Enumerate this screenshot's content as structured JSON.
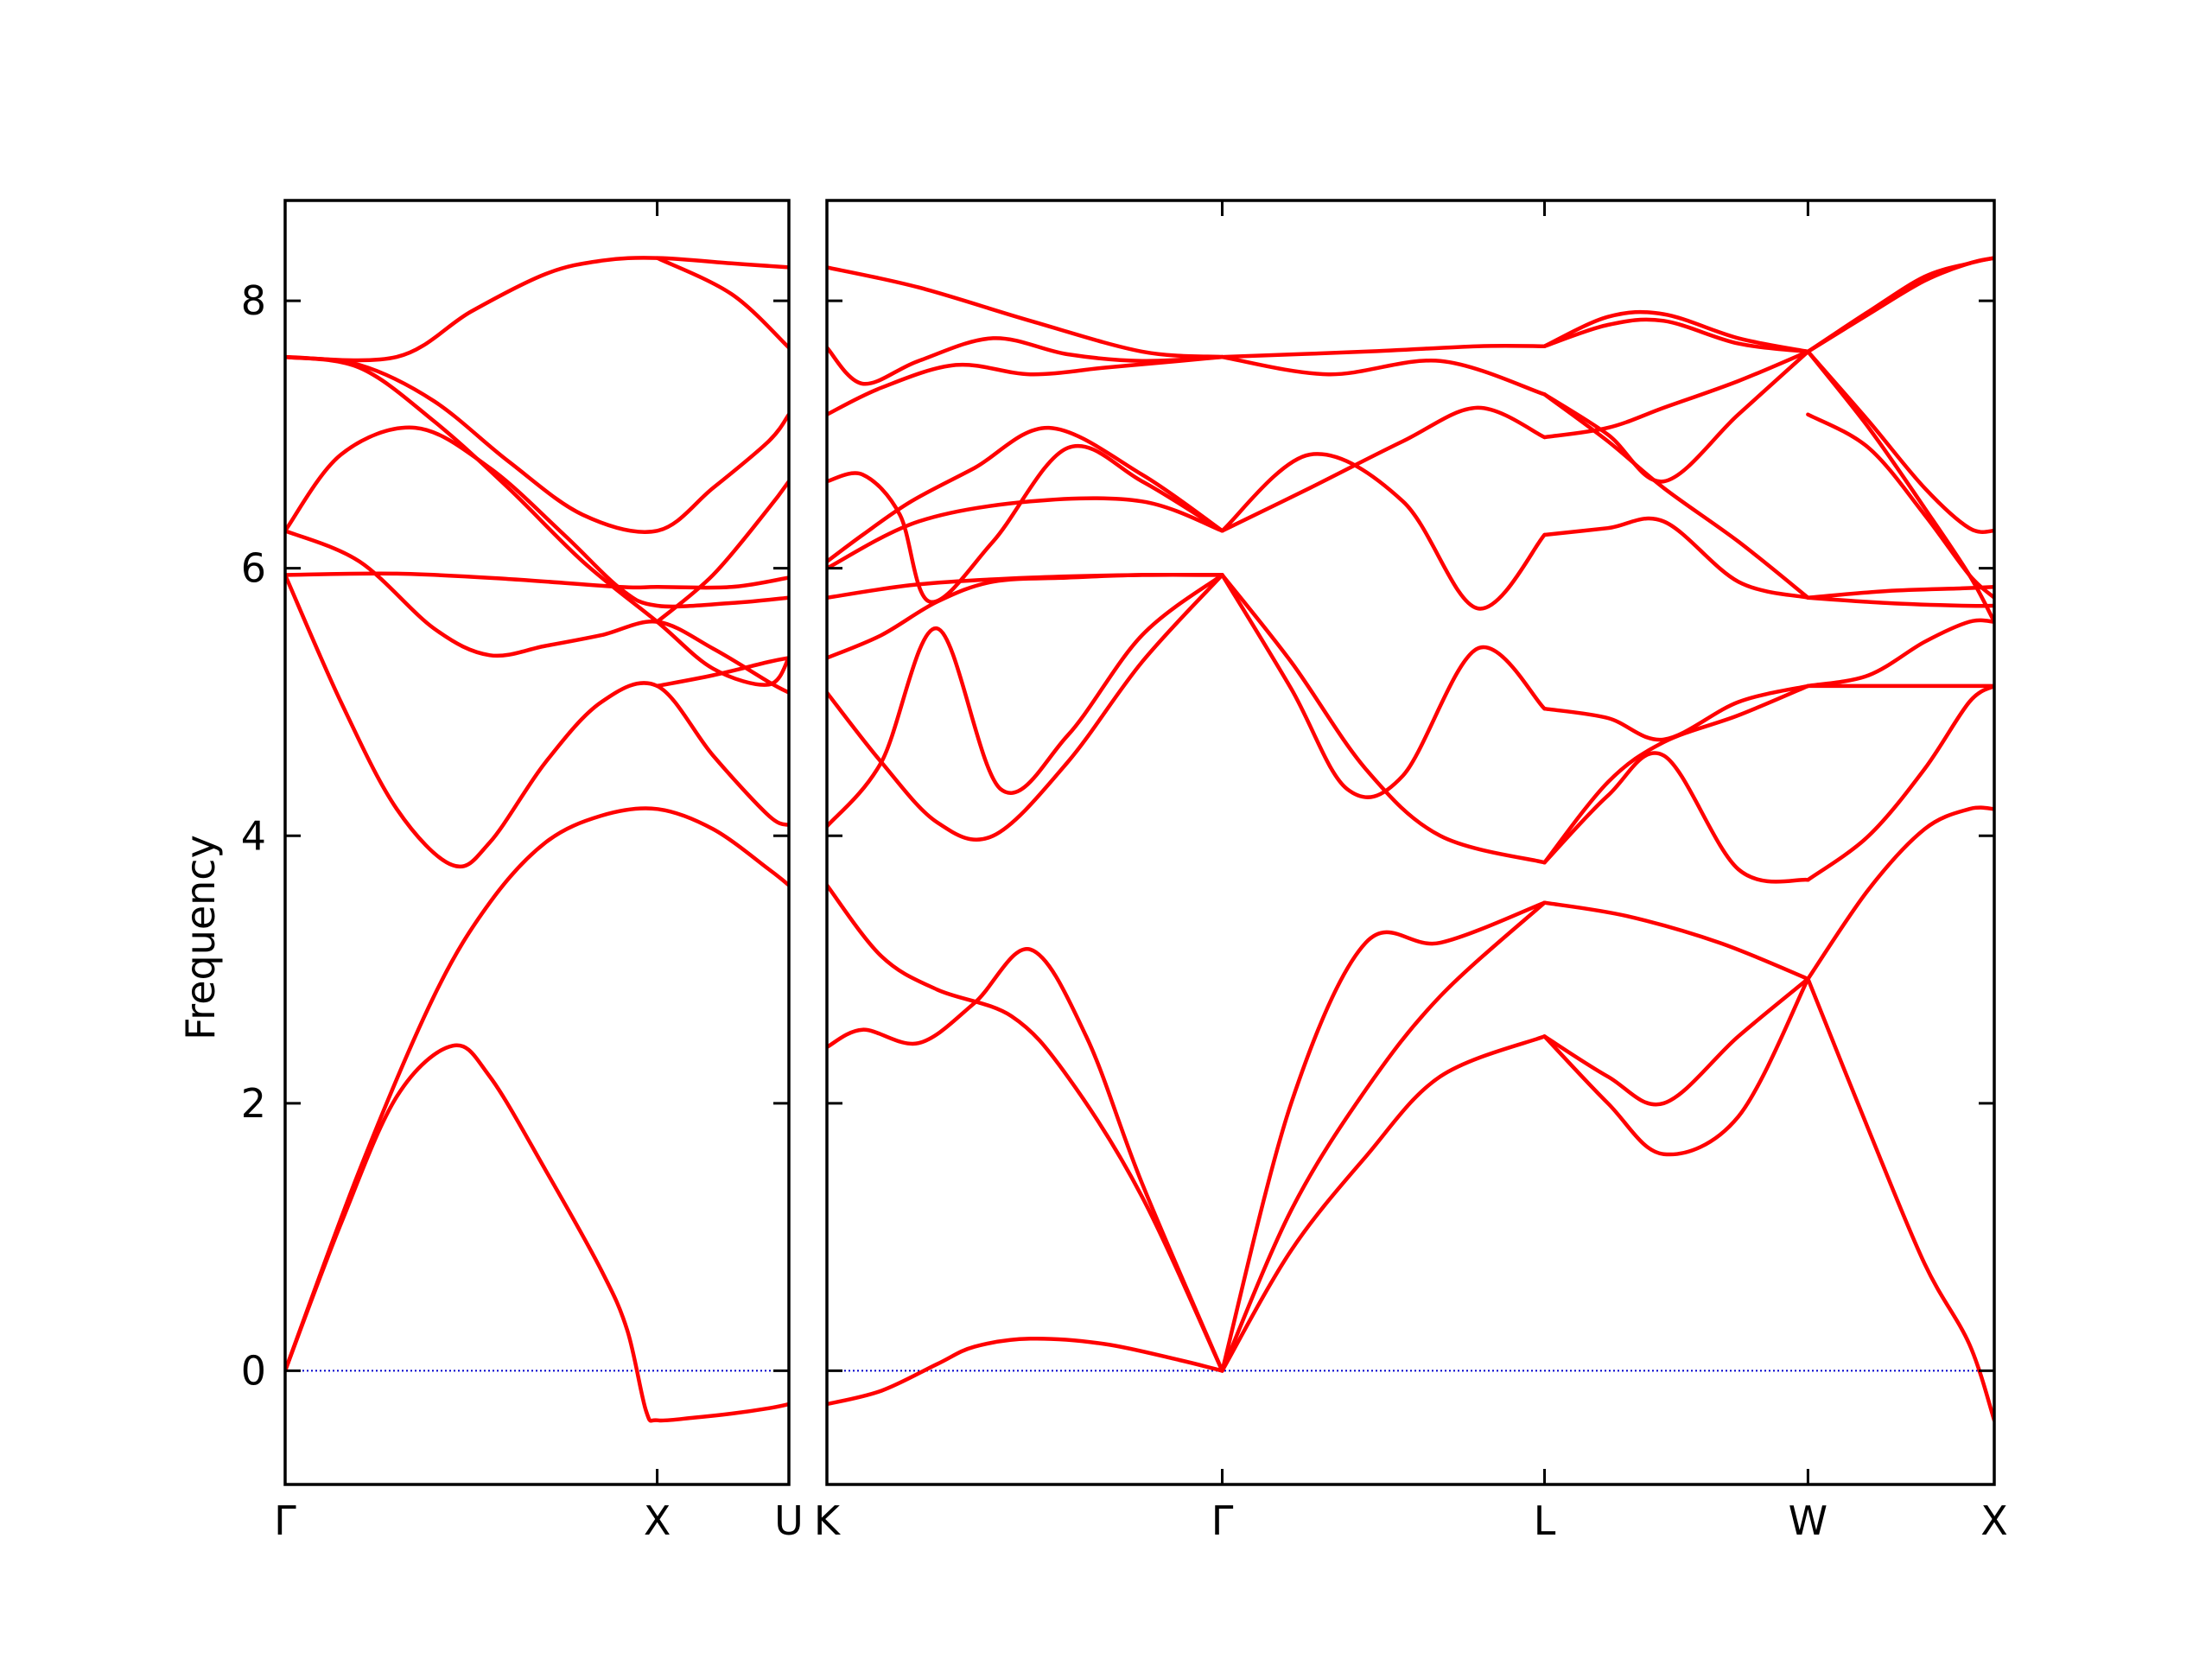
{
  "chart_data": {
    "type": "line",
    "ylabel": "Frequency",
    "ylim": [
      -0.85,
      8.75
    ],
    "yticks": [
      0,
      2,
      4,
      6,
      8
    ],
    "yticks_labels": [
      "0",
      "2",
      "4",
      "6",
      "8"
    ],
    "x_segments": [
      [
        0,
        1.0
      ],
      [
        1.0,
        1.354
      ],
      [
        1.354,
        2.415
      ],
      [
        2.415,
        3.28
      ],
      [
        3.28,
        3.987
      ],
      [
        3.987,
        4.487
      ]
    ],
    "x_breaks": [
      1.354
    ],
    "xticks": [
      0,
      1.0,
      1.354,
      2.415,
      3.28,
      3.987,
      4.487
    ],
    "xtick_labels": [
      "Γ",
      "X",
      "U",
      "K",
      "Γ",
      "L",
      "W",
      "X"
    ],
    "colors": {
      "band": "#ff0000",
      "zero_line": "#0000cc",
      "axes": "#000000"
    },
    "zero_line": "dotted",
    "series": [
      {
        "x": [
          0,
          0.15,
          0.3,
          0.45,
          0.55,
          0.7,
          0.85,
          0.92,
          0.97,
          1.0,
          1.1,
          1.2,
          1.3,
          1.354
        ],
        "y": [
          0,
          1.1,
          2.05,
          2.43,
          2.2,
          1.5,
          0.75,
          0.3,
          -0.3,
          -0.37,
          -0.35,
          -0.32,
          -0.28,
          -0.25
        ]
      },
      {
        "x": [
          0,
          0.2,
          0.4,
          0.55,
          0.7,
          0.85,
          1.0,
          1.15,
          1.3,
          1.354
        ],
        "y": [
          0,
          1.5,
          2.8,
          3.5,
          3.95,
          4.15,
          4.2,
          4.05,
          3.75,
          3.63
        ]
      },
      {
        "x": [
          0,
          0.15,
          0.3,
          0.45,
          0.55,
          0.7,
          0.85,
          1.0,
          1.15,
          1.3,
          1.354
        ],
        "y": [
          5.95,
          5.0,
          4.2,
          3.78,
          3.95,
          4.55,
          5.0,
          5.12,
          4.6,
          4.15,
          4.08
        ]
      },
      {
        "x": [
          0,
          0.2,
          0.4,
          0.55,
          0.7,
          0.85,
          1.0,
          1.15,
          1.3,
          1.354
        ],
        "y": [
          6.28,
          6.05,
          5.55,
          5.35,
          5.42,
          5.5,
          5.6,
          5.4,
          5.15,
          5.07
        ]
      },
      {
        "x": [
          0,
          0.3,
          0.6,
          0.9,
          1.0,
          1.2,
          1.354
        ],
        "y": [
          5.95,
          5.96,
          5.92,
          5.86,
          5.86,
          5.86,
          5.93
        ]
      },
      {
        "x": [
          0,
          0.15,
          0.35,
          0.55,
          0.75,
          0.9,
          1.0,
          1.2,
          1.354
        ],
        "y": [
          6.28,
          6.85,
          7.05,
          6.75,
          6.25,
          5.85,
          5.72,
          5.74,
          5.78
        ]
      },
      {
        "x": [
          0,
          0.2,
          0.4,
          0.6,
          0.8,
          1.0,
          1.15,
          1.3,
          1.354
        ],
        "y": [
          7.58,
          7.5,
          7.1,
          6.6,
          6.05,
          5.6,
          5.25,
          5.13,
          5.33
        ]
      },
      {
        "x": [
          0,
          0.2,
          0.4,
          0.6,
          0.8,
          1.0,
          1.15,
          1.3,
          1.354
        ],
        "y": [
          7.58,
          7.52,
          7.25,
          6.8,
          6.4,
          6.28,
          6.6,
          6.95,
          7.15
        ]
      },
      {
        "x": [
          0,
          0.3,
          0.5,
          0.7,
          0.85,
          1.0,
          1.2,
          1.354
        ],
        "y": [
          7.58,
          7.58,
          7.92,
          8.2,
          8.3,
          8.32,
          8.28,
          8.25
        ]
      },
      {
        "x": [
          1.0,
          1.2,
          1.354
        ],
        "y": [
          8.32,
          8.05,
          7.65
        ]
      },
      {
        "x": [
          1.0,
          1.15,
          1.3,
          1.354
        ],
        "y": [
          5.12,
          5.2,
          5.3,
          5.33
        ]
      },
      {
        "x": [
          1.0,
          1.15,
          1.3,
          1.354
        ],
        "y": [
          5.6,
          5.95,
          6.45,
          6.65
        ]
      },
      {
        "x": [
          1.354,
          1.5,
          1.65,
          1.75,
          1.9,
          2.1,
          2.3,
          2.415
        ],
        "y": [
          -0.25,
          -0.15,
          0.05,
          0.18,
          0.24,
          0.2,
          0.08,
          0
        ]
      },
      {
        "x": [
          1.354,
          1.45,
          1.6,
          1.75,
          1.9,
          2.05,
          2.2,
          2.415
        ],
        "y": [
          2.42,
          2.55,
          2.45,
          2.75,
          3.15,
          2.5,
          1.4,
          0
        ]
      },
      {
        "x": [
          1.354,
          1.5,
          1.65,
          1.85,
          2.0,
          2.2,
          2.415
        ],
        "y": [
          3.63,
          3.1,
          2.85,
          2.65,
          2.2,
          1.3,
          0
        ]
      },
      {
        "x": [
          1.354,
          1.5,
          1.65,
          1.82,
          2.0,
          2.2,
          2.415
        ],
        "y": [
          4.07,
          4.55,
          5.55,
          4.35,
          4.75,
          5.5,
          5.95
        ]
      },
      {
        "x": [
          1.354,
          1.5,
          1.65,
          1.8,
          2.0,
          2.2,
          2.415
        ],
        "y": [
          5.07,
          4.55,
          4.1,
          4.0,
          4.55,
          5.3,
          5.95
        ]
      },
      {
        "x": [
          1.354,
          1.5,
          1.65,
          1.8,
          2.0,
          2.2,
          2.415
        ],
        "y": [
          5.33,
          5.5,
          5.75,
          5.9,
          5.93,
          5.95,
          5.95
        ]
      },
      {
        "x": [
          1.354,
          1.6,
          1.9,
          2.2,
          2.415
        ],
        "y": [
          5.78,
          5.88,
          5.93,
          5.95,
          5.95
        ]
      },
      {
        "x": [
          1.354,
          1.45,
          1.58,
          1.75,
          1.95,
          2.2,
          2.415
        ],
        "y": [
          6.05,
          6.25,
          6.5,
          6.75,
          7.05,
          6.7,
          6.28
        ]
      },
      {
        "x": [
          1.354,
          1.45,
          1.55,
          1.63,
          1.8,
          2.0,
          2.2,
          2.415
        ],
        "y": [
          6.65,
          6.7,
          6.4,
          5.75,
          6.2,
          6.9,
          6.65,
          6.28
        ]
      },
      {
        "x": [
          1.354,
          1.5,
          1.7,
          1.9,
          2.1,
          2.3,
          2.415
        ],
        "y": [
          7.15,
          7.35,
          7.52,
          7.45,
          7.5,
          7.55,
          7.58
        ]
      },
      {
        "x": [
          1.354,
          1.45,
          1.6,
          1.8,
          2.0,
          2.2,
          2.415
        ],
        "y": [
          7.65,
          7.38,
          7.55,
          7.72,
          7.6,
          7.55,
          7.58
        ]
      },
      {
        "x": [
          1.354,
          1.6,
          1.9,
          2.2,
          2.415
        ],
        "y": [
          8.25,
          8.1,
          7.85,
          7.62,
          7.58
        ]
      },
      {
        "x": [
          1.354,
          1.6,
          1.9,
          2.2,
          2.415
        ],
        "y": [
          6.0,
          6.35,
          6.5,
          6.5,
          6.28
        ]
      },
      {
        "x": [
          2.415,
          2.6,
          2.8,
          3.0,
          3.28
        ],
        "y": [
          0,
          1.2,
          2.1,
          2.8,
          3.5
        ]
      },
      {
        "x": [
          2.415,
          2.6,
          2.8,
          3.0,
          3.28
        ],
        "y": [
          0,
          2.0,
          3.2,
          3.2,
          3.5
        ]
      },
      {
        "x": [
          2.415,
          2.6,
          2.8,
          3.0,
          3.28
        ],
        "y": [
          0,
          0.9,
          1.6,
          2.2,
          2.5
        ]
      },
      {
        "x": [
          2.415,
          2.6,
          2.75,
          2.9,
          3.1,
          3.28
        ],
        "y": [
          5.95,
          5.1,
          4.35,
          4.45,
          5.4,
          4.95
        ]
      },
      {
        "x": [
          2.415,
          2.6,
          2.8,
          3.0,
          3.28
        ],
        "y": [
          5.95,
          5.3,
          4.5,
          4.0,
          3.8
        ]
      },
      {
        "x": [
          2.415,
          2.65,
          2.9,
          3.1,
          3.28
        ],
        "y": [
          6.28,
          6.85,
          6.5,
          5.7,
          6.25
        ]
      },
      {
        "x": [
          2.415,
          2.65,
          2.9,
          3.1,
          3.28
        ],
        "y": [
          6.28,
          6.6,
          6.95,
          7.2,
          6.98
        ]
      },
      {
        "x": [
          2.415,
          2.7,
          3.0,
          3.28
        ],
        "y": [
          7.58,
          7.45,
          7.55,
          7.3
        ]
      },
      {
        "x": [
          2.415,
          2.8,
          3.1,
          3.28
        ],
        "y": [
          7.58,
          7.62,
          7.66,
          7.66
        ]
      },
      {
        "x": [
          3.28,
          3.45,
          3.6,
          3.8,
          3.987
        ],
        "y": [
          2.5,
          2.2,
          2.0,
          2.5,
          2.93
        ]
      },
      {
        "x": [
          3.28,
          3.45,
          3.6,
          3.8,
          3.987
        ],
        "y": [
          2.5,
          2.0,
          1.62,
          1.9,
          2.93
        ]
      },
      {
        "x": [
          3.28,
          3.5,
          3.75,
          3.987
        ],
        "y": [
          3.5,
          3.4,
          3.2,
          2.93
        ]
      },
      {
        "x": [
          3.28,
          3.45,
          3.6,
          3.8,
          3.987
        ],
        "y": [
          3.8,
          4.4,
          4.7,
          4.9,
          5.12
        ]
      },
      {
        "x": [
          3.28,
          3.45,
          3.6,
          3.8,
          3.987
        ],
        "y": [
          3.8,
          4.3,
          4.6,
          3.75,
          3.67
        ]
      },
      {
        "x": [
          3.28,
          3.45,
          3.6,
          3.8,
          3.987
        ],
        "y": [
          4.95,
          4.88,
          4.72,
          5.0,
          5.12
        ]
      },
      {
        "x": [
          3.28,
          3.45,
          3.6,
          3.8,
          3.987
        ],
        "y": [
          6.25,
          6.3,
          6.35,
          5.9,
          5.78
        ]
      },
      {
        "x": [
          3.28,
          3.45,
          3.6,
          3.8,
          3.987
        ],
        "y": [
          7.3,
          6.95,
          6.6,
          6.2,
          5.78
        ]
      },
      {
        "x": [
          3.28,
          3.45,
          3.6,
          3.8,
          3.987
        ],
        "y": [
          6.98,
          7.05,
          7.2,
          7.4,
          7.62
        ]
      },
      {
        "x": [
          3.28,
          3.45,
          3.6,
          3.8,
          3.987
        ],
        "y": [
          7.3,
          7.0,
          6.65,
          7.15,
          7.62
        ]
      },
      {
        "x": [
          3.28,
          3.45,
          3.6,
          3.8,
          3.987
        ],
        "y": [
          7.66,
          7.88,
          7.9,
          7.72,
          7.62
        ]
      },
      {
        "x": [
          3.28,
          3.45,
          3.6,
          3.8,
          3.987
        ],
        "y": [
          7.66,
          7.82,
          7.85,
          7.68,
          7.62
        ]
      },
      {
        "x": [
          3.987,
          4.15,
          4.3,
          4.42,
          4.487
        ],
        "y": [
          2.93,
          1.8,
          0.8,
          0.2,
          -0.37
        ]
      },
      {
        "x": [
          3.987,
          4.15,
          4.3,
          4.42,
          4.487
        ],
        "y": [
          2.93,
          3.6,
          4.05,
          4.2,
          4.2
        ]
      },
      {
        "x": [
          3.987,
          4.15,
          4.3,
          4.42,
          4.487
        ],
        "y": [
          3.67,
          4.0,
          4.5,
          5.0,
          5.12
        ]
      },
      {
        "x": [
          3.987,
          4.2,
          4.4,
          4.487
        ],
        "y": [
          5.12,
          5.12,
          5.12,
          5.12
        ]
      },
      {
        "x": [
          3.987,
          4.15,
          4.3,
          4.42,
          4.487
        ],
        "y": [
          5.12,
          5.2,
          5.45,
          5.6,
          5.6
        ]
      },
      {
        "x": [
          3.987,
          4.2,
          4.4,
          4.487
        ],
        "y": [
          5.78,
          5.83,
          5.85,
          5.86
        ]
      },
      {
        "x": [
          3.987,
          4.2,
          4.4,
          4.487
        ],
        "y": [
          5.78,
          5.74,
          5.72,
          5.72
        ]
      },
      {
        "x": [
          3.987,
          4.15,
          4.3,
          4.42,
          4.487
        ],
        "y": [
          7.62,
          7.05,
          6.45,
          5.95,
          5.6
        ]
      },
      {
        "x": [
          3.987,
          4.15,
          4.3,
          4.42,
          4.487
        ],
        "y": [
          7.62,
          7.1,
          6.6,
          6.3,
          6.28
        ]
      },
      {
        "x": [
          3.987,
          4.15,
          4.3,
          4.42,
          4.487
        ],
        "y": [
          7.62,
          7.9,
          8.15,
          8.28,
          8.32
        ]
      },
      {
        "x": [
          3.987,
          4.15,
          4.3,
          4.42,
          4.487
        ],
        "y": [
          7.62,
          7.92,
          8.18,
          8.28,
          8.32
        ]
      },
      {
        "x": [
          3.987,
          4.15,
          4.3,
          4.42,
          4.487
        ],
        "y": [
          7.15,
          6.9,
          6.4,
          5.95,
          5.78
        ]
      }
    ]
  }
}
